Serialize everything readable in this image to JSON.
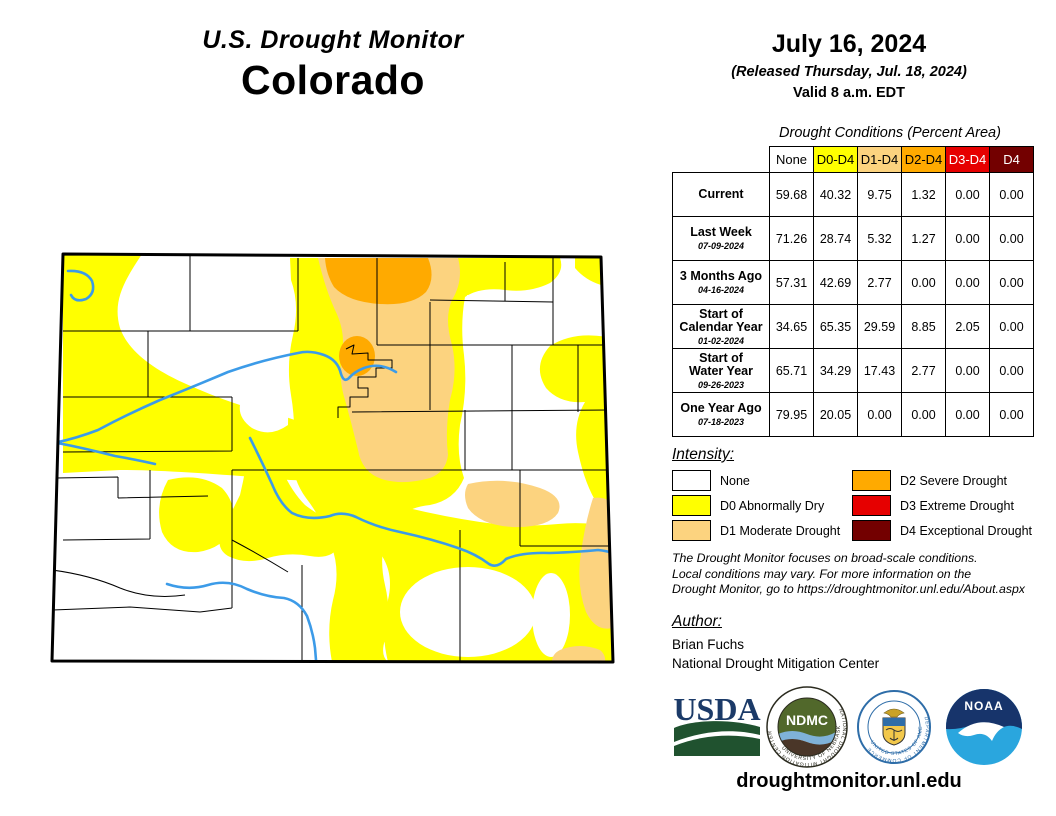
{
  "page": {
    "title_line1": "U.S. Drought Monitor",
    "title_line2": "Colorado",
    "footer_url": "droughtmonitor.unl.edu"
  },
  "date_block": {
    "date": "July 16, 2024",
    "released": "(Released Thursday, Jul. 18, 2024)",
    "valid": "Valid 8 a.m. EDT"
  },
  "table": {
    "title": "Drought Conditions (Percent Area)",
    "columns": [
      {
        "label": "None",
        "bg": "#FFFFFF",
        "fg": "#000000"
      },
      {
        "label": "D0-D4",
        "bg": "#FFFF00",
        "fg": "#000000"
      },
      {
        "label": "D1-D4",
        "bg": "#FCD37F",
        "fg": "#000000"
      },
      {
        "label": "D2-D4",
        "bg": "#FFAA00",
        "fg": "#000000"
      },
      {
        "label": "D3-D4",
        "bg": "#E60000",
        "fg": "#FFFFFF"
      },
      {
        "label": "D4",
        "bg": "#730000",
        "fg": "#FFFFFF"
      }
    ],
    "rows": [
      {
        "label": "Current",
        "date": "",
        "values": [
          "59.68",
          "40.32",
          "9.75",
          "1.32",
          "0.00",
          "0.00"
        ]
      },
      {
        "label": "Last Week",
        "date": "07-09-2024",
        "values": [
          "71.26",
          "28.74",
          "5.32",
          "1.27",
          "0.00",
          "0.00"
        ]
      },
      {
        "label": "3 Months Ago",
        "date": "04-16-2024",
        "values": [
          "57.31",
          "42.69",
          "2.77",
          "0.00",
          "0.00",
          "0.00"
        ]
      },
      {
        "label": "Start of\nCalendar Year",
        "date": "01-02-2024",
        "values": [
          "34.65",
          "65.35",
          "29.59",
          "8.85",
          "2.05",
          "0.00"
        ]
      },
      {
        "label": "Start of\nWater Year",
        "date": "09-26-2023",
        "values": [
          "65.71",
          "34.29",
          "17.43",
          "2.77",
          "0.00",
          "0.00"
        ]
      },
      {
        "label": "One Year Ago",
        "date": "07-18-2023",
        "values": [
          "79.95",
          "20.05",
          "0.00",
          "0.00",
          "0.00",
          "0.00"
        ]
      }
    ]
  },
  "legend": {
    "heading": "Intensity:",
    "items": [
      {
        "label": "None",
        "color": "#FFFFFF"
      },
      {
        "label": "D0 Abnormally Dry",
        "color": "#FFFF00"
      },
      {
        "label": "D1 Moderate Drought",
        "color": "#FCD37F"
      },
      {
        "label": "D2 Severe Drought",
        "color": "#FFAA00"
      },
      {
        "label": "D3 Extreme Drought",
        "color": "#E60000"
      },
      {
        "label": "D4 Exceptional Drought",
        "color": "#730000"
      }
    ]
  },
  "notes": {
    "disclaimer": "The Drought Monitor focuses on broad-scale conditions.\nLocal conditions may vary. For more information on the\nDrought Monitor, go to https://droughtmonitor.unl.edu/About.aspx",
    "author_heading": "Author:",
    "author_name": "Brian Fuchs",
    "author_org": "National Drought Mitigation Center"
  },
  "logos": {
    "usda": "USDA",
    "ndmc": "NDMC",
    "ndmc_ring_top": "NATIONAL DROUGHT MITIGATION CENTER",
    "ndmc_ring_bottom": "UNIVERSITY OF NEBRASKA",
    "doc_ring_top": "DEPARTMENT OF COMMERCE",
    "doc_ring_bottom": "UNITED STATES OF AMERICA",
    "noaa": "NOAA"
  },
  "map": {
    "state": "Colorado"
  },
  "palette": {
    "none": "#FFFFFF",
    "d0": "#FFFF00",
    "d1": "#FCD37F",
    "d2": "#FFAA00",
    "d3": "#E60000",
    "d4": "#730000",
    "river": "#3C9BE8"
  }
}
